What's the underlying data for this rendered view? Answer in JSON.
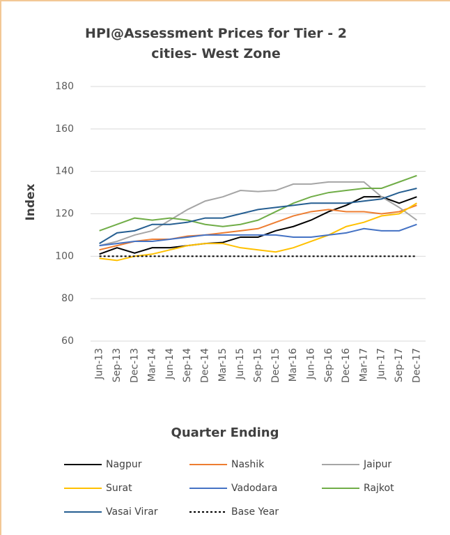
{
  "chart_data": {
    "type": "line",
    "title": "HPI@Assessment Prices for Tier - 2 cities- West Zone",
    "y_label": "Index",
    "x_label": "Quarter Ending",
    "categories": [
      "Jun-13",
      "Sep-13",
      "Dec-13",
      "Mar-14",
      "Jun-14",
      "Sep-14",
      "Dec-14",
      "Mar-15",
      "Jun-15",
      "Sep-15",
      "Dec-15",
      "Mar-16",
      "Jun-16",
      "Sep-16",
      "Dec-16",
      "Mar-17",
      "Jun-17",
      "Sep-17",
      "Dec-17"
    ],
    "ylim": [
      60,
      180
    ],
    "yticks": [
      60,
      80,
      100,
      120,
      140,
      160,
      180
    ],
    "grid": true,
    "legend": "bottom",
    "series": [
      {
        "name": "Nagpur",
        "color": "#000000",
        "style": "solid",
        "values": [
          101,
          104,
          101.5,
          104,
          104,
          105,
          106,
          106.5,
          109,
          109,
          112,
          114,
          117,
          121,
          124,
          128,
          128,
          125,
          128
        ]
      },
      {
        "name": "Nashik",
        "color": "#ed7d31",
        "style": "solid",
        "values": [
          103,
          105,
          107,
          108,
          108,
          109.5,
          110,
          111,
          112,
          113,
          116,
          119,
          121,
          122,
          121,
          121,
          120,
          121,
          124
        ]
      },
      {
        "name": "Jaipur",
        "color": "#a5a5a5",
        "style": "solid",
        "values": [
          105,
          107,
          110,
          112,
          117,
          122,
          126,
          128,
          131,
          130.5,
          131,
          134,
          134,
          135,
          135,
          135,
          128,
          123,
          117
        ]
      },
      {
        "name": "Surat",
        "color": "#ffc000",
        "style": "solid",
        "values": [
          99,
          98,
          100,
          101,
          103,
          105,
          106,
          106,
          104,
          103,
          102,
          104,
          107,
          110,
          114,
          116,
          119,
          120,
          125
        ]
      },
      {
        "name": "Vadodara",
        "color": "#4472c4",
        "style": "solid",
        "values": [
          105,
          106,
          107,
          107,
          108,
          109,
          110,
          110,
          110,
          110,
          110,
          109,
          109,
          110,
          111,
          113,
          112,
          112,
          115
        ]
      },
      {
        "name": "Rajkot",
        "color": "#70ad47",
        "style": "solid",
        "values": [
          112,
          115,
          118,
          117,
          118,
          117,
          115,
          114,
          115,
          117,
          121,
          125,
          128,
          130,
          131,
          132,
          132,
          135,
          138
        ]
      },
      {
        "name": "Vasai Virar",
        "color": "#255e91",
        "style": "solid",
        "values": [
          106,
          111,
          112,
          115,
          115,
          116,
          118,
          118,
          120,
          122,
          123,
          124,
          125,
          125,
          125,
          126,
          127,
          130,
          132
        ]
      },
      {
        "name": "Base Year",
        "color": "#000000",
        "style": "dashed",
        "values": [
          100,
          100,
          100,
          100,
          100,
          100,
          100,
          100,
          100,
          100,
          100,
          100,
          100,
          100,
          100,
          100,
          100,
          100,
          100
        ]
      }
    ]
  }
}
